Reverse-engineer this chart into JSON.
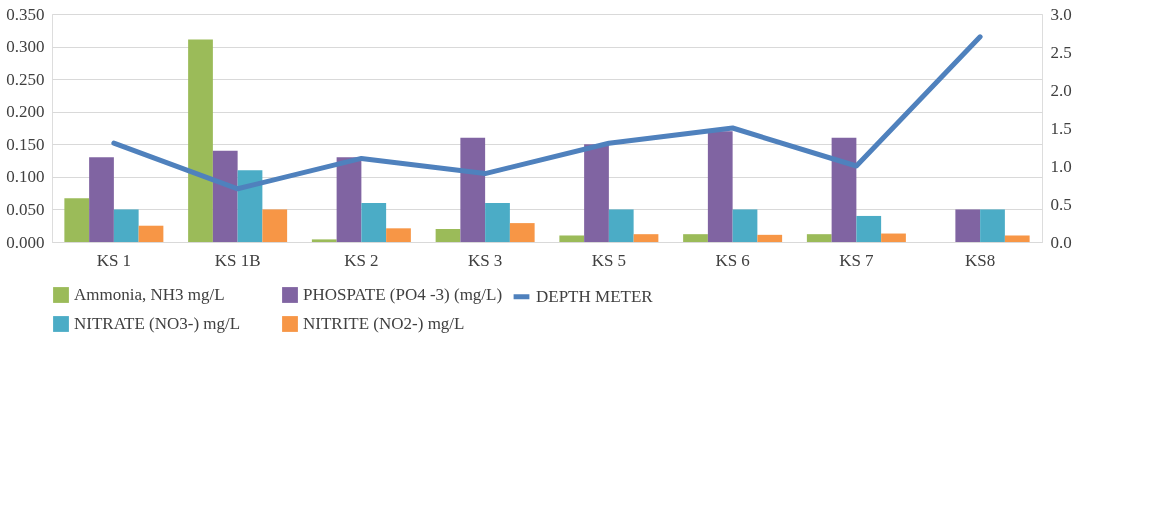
{
  "chart_data": {
    "type": "bar",
    "categories": [
      "KS 1",
      "KS 1B",
      "KS 2",
      "KS 3",
      "KS 5",
      "KS 6",
      "KS 7",
      "KS8"
    ],
    "series": [
      {
        "name": "Ammonia, NH3 mg/L",
        "color": "#9bbb59",
        "values": [
          0.067,
          0.311,
          0.004,
          0.02,
          0.01,
          0.012,
          0.012,
          null
        ]
      },
      {
        "name": "PHOSPATE (PO4 -3) (mg/L)",
        "color": "#8064a2",
        "values": [
          0.13,
          0.14,
          0.13,
          0.16,
          0.15,
          0.17,
          0.16,
          0.05
        ]
      },
      {
        "name": "NITRATE (NO3-) mg/L",
        "color": "#4bacc6",
        "values": [
          0.05,
          0.11,
          0.06,
          0.06,
          0.05,
          0.05,
          0.04,
          0.05
        ]
      },
      {
        "name": "NITRITE (NO2-) mg/L",
        "color": "#f79646",
        "values": [
          0.025,
          0.05,
          0.021,
          0.029,
          0.012,
          0.011,
          0.013,
          0.01
        ]
      },
      {
        "name": "DEPTH METER",
        "color": "#4f81bd",
        "type": "line",
        "axis": "y2",
        "values": [
          1.3,
          0.7,
          1.1,
          0.9,
          1.3,
          1.5,
          1.0,
          2.7
        ]
      }
    ],
    "ylim": [
      0,
      0.35
    ],
    "yticks": [
      {
        "value": 0,
        "label": "0.000"
      },
      {
        "value": 0.05,
        "label": "0.050"
      },
      {
        "value": 0.1,
        "label": "0.100"
      },
      {
        "value": 0.15,
        "label": "0.150"
      },
      {
        "value": 0.2,
        "label": "0.200"
      },
      {
        "value": 0.25,
        "label": "0.250"
      },
      {
        "value": 0.3,
        "label": "0.300"
      },
      {
        "value": 0.35,
        "label": "0.350"
      }
    ],
    "y2lim": [
      0,
      3
    ],
    "y2ticks": [
      {
        "value": 0,
        "label": "0.0"
      },
      {
        "value": 0.5,
        "label": "0.5"
      },
      {
        "value": 1,
        "label": "1.0"
      },
      {
        "value": 1.5,
        "label": "1.5"
      },
      {
        "value": 2,
        "label": "2.0"
      },
      {
        "value": 2.5,
        "label": "2.5"
      },
      {
        "value": 3,
        "label": "3.0"
      }
    ],
    "grid": "y",
    "legend": "bottom",
    "marker": "none",
    "line_style": "solid"
  }
}
